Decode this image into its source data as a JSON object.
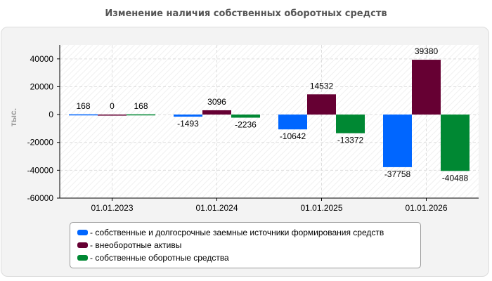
{
  "chart_data": {
    "type": "bar",
    "title": "Изменение наличия собственных оборотных средств",
    "ylabel": "тыс.",
    "xlabel": "",
    "categories": [
      "01.01.2023",
      "01.01.2024",
      "01.01.2025",
      "01.01.2026"
    ],
    "series": [
      {
        "name": "- собственные и долгосрочные заемные источники формирования средств",
        "color": "#0066ff",
        "values": [
          168,
          -1493,
          -10642,
          -37758
        ]
      },
      {
        "name": "- внеоборотные активы",
        "color": "#660033",
        "values": [
          0,
          3096,
          14532,
          39380
        ]
      },
      {
        "name": "- собственные оборотные средства",
        "color": "#008833",
        "values": [
          168,
          -2236,
          -13372,
          -40488
        ]
      }
    ],
    "ylim": [
      -60000,
      50000
    ],
    "yticks": [
      40000,
      20000,
      0,
      -20000,
      -40000,
      -60000
    ],
    "grid": true,
    "legend_position": "bottom"
  }
}
